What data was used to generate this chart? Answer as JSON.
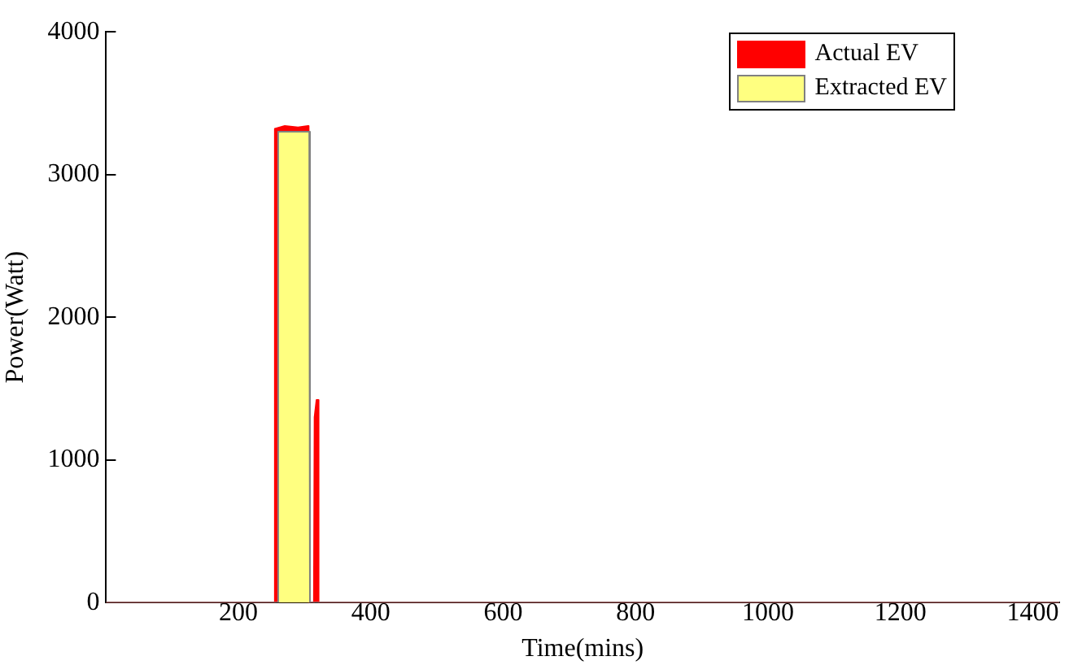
{
  "chart_data": {
    "type": "area",
    "xlabel": "Time(mins)",
    "ylabel": "Power(Watt)",
    "xlim": [
      0,
      1440
    ],
    "xticks": [
      200,
      400,
      600,
      800,
      1000,
      1200,
      1400
    ],
    "ylim": [
      0,
      4000
    ],
    "yticks": [
      0,
      1000,
      2000,
      3000,
      4000
    ],
    "grid": false,
    "legend": "top right",
    "series": [
      {
        "name": "Actual EV",
        "color": "#ff0000",
        "x": [
          0,
          254,
          255,
          270,
          290,
          305,
          306,
          314,
          315,
          318,
          320,
          321,
          1440
        ],
        "values": [
          0,
          0,
          3320,
          3340,
          3330,
          3340,
          0,
          0,
          1300,
          1420,
          1420,
          0,
          0
        ]
      },
      {
        "name": "Extracted EV",
        "color": "#ffff80",
        "x": [
          0,
          259,
          260,
          307,
          308,
          1440
        ],
        "values": [
          0,
          0,
          3300,
          3300,
          0,
          0
        ]
      }
    ]
  }
}
